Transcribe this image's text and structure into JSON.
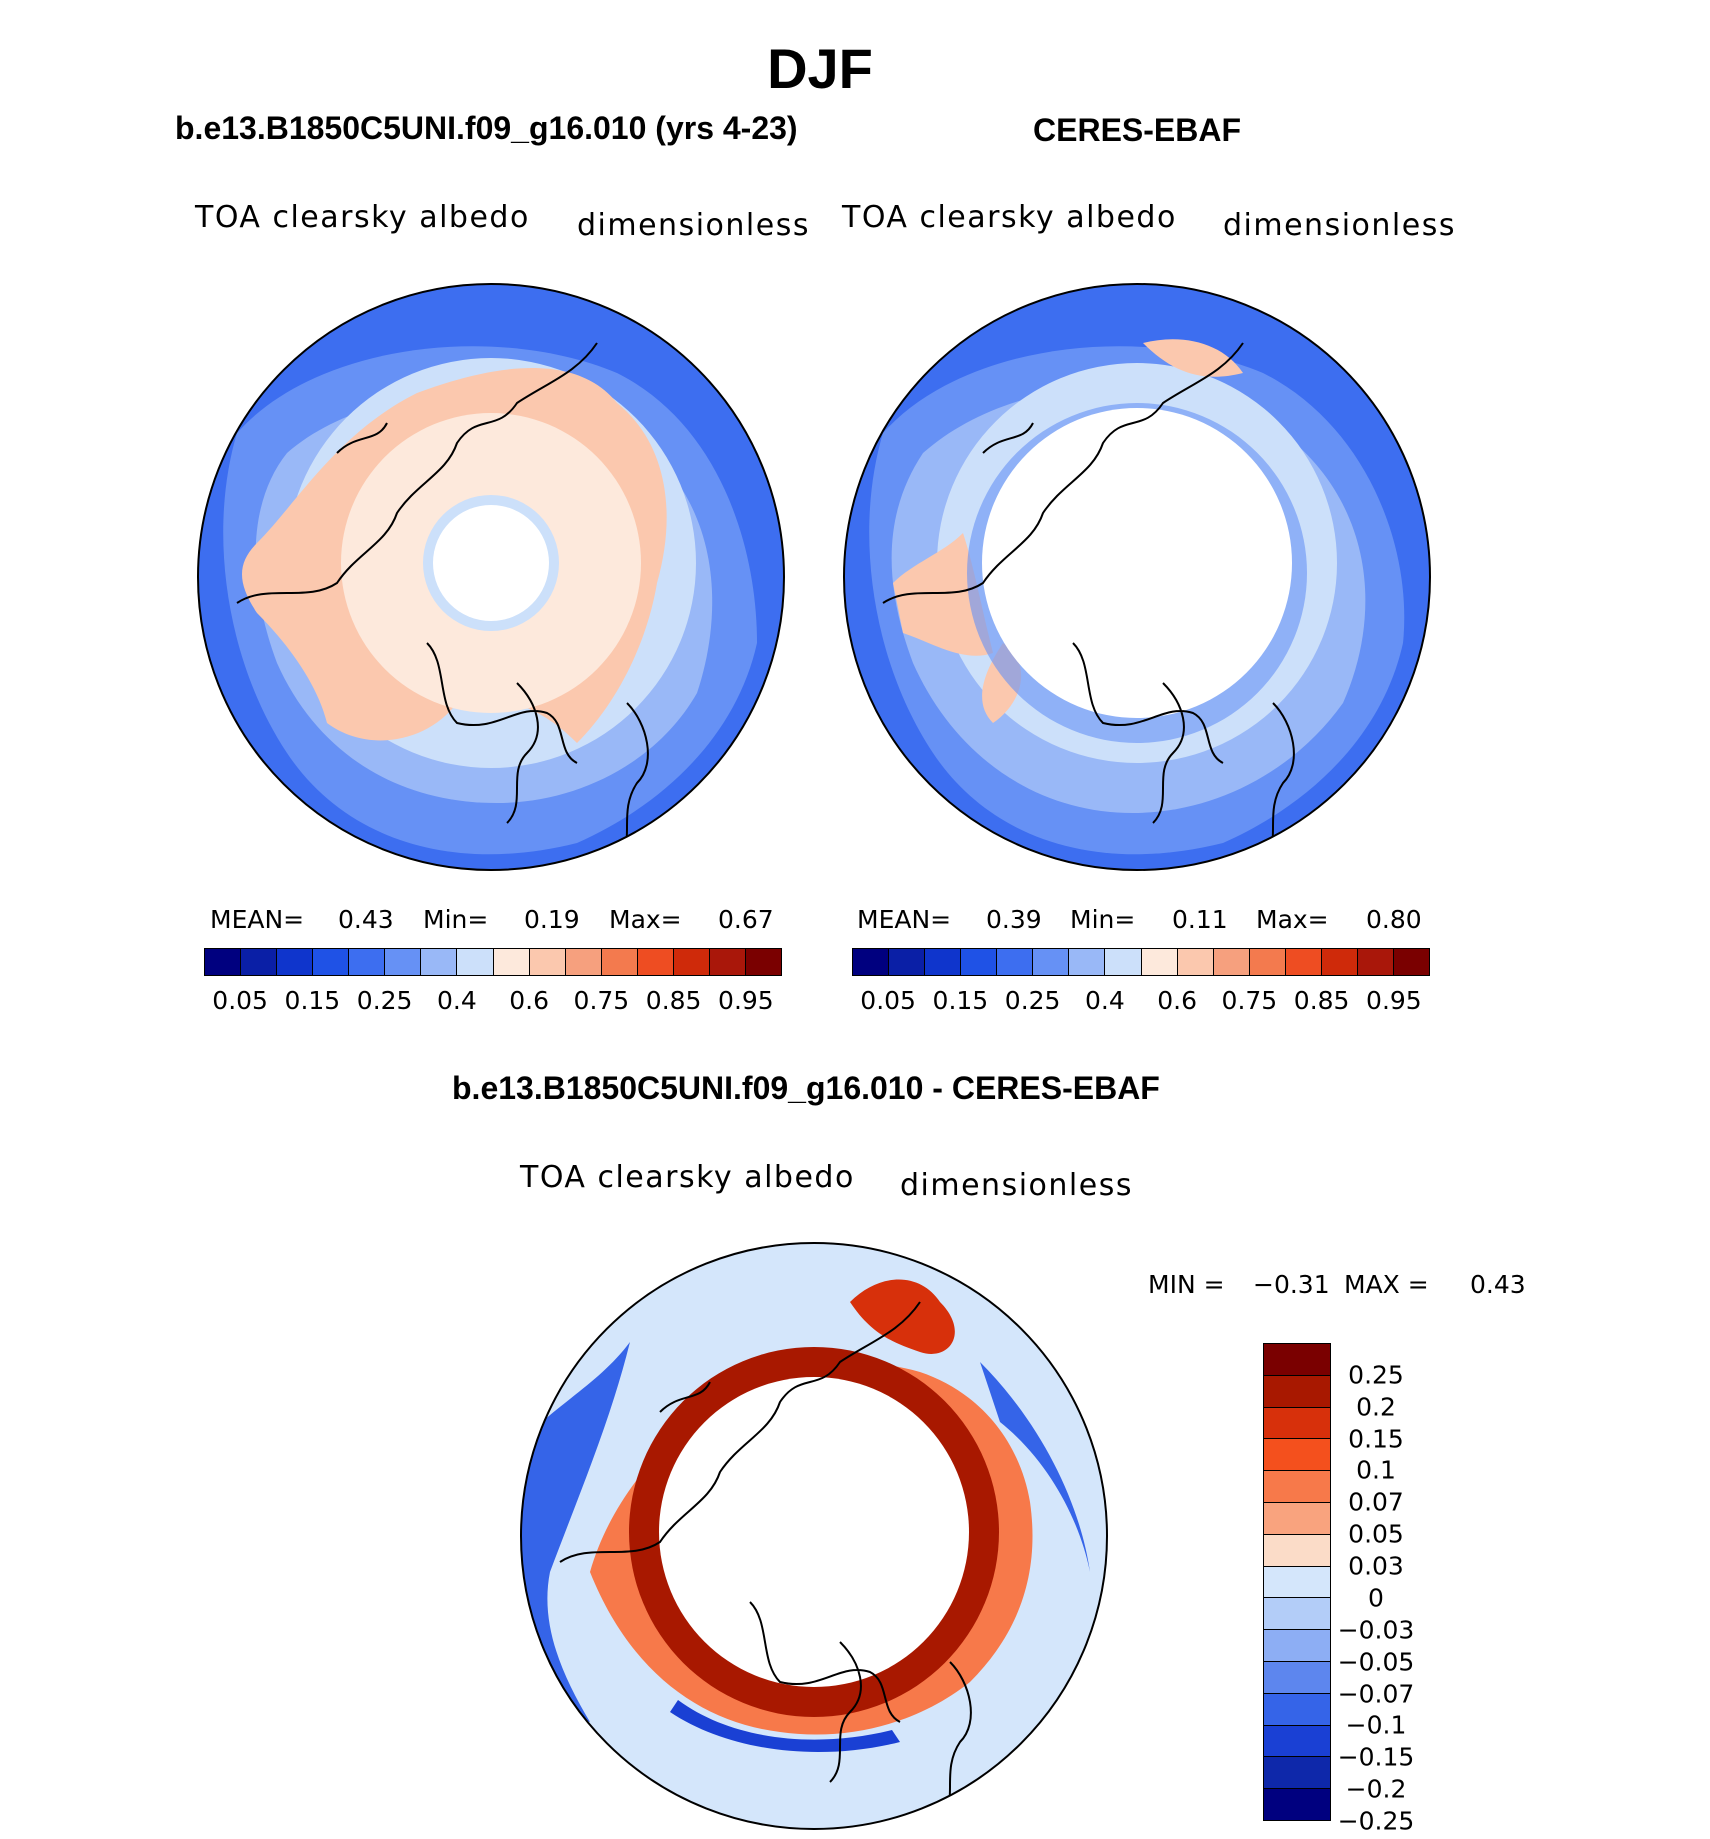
{
  "title": "DJF",
  "panels": [
    {
      "heading": "b.e13.B1850C5UNI.f09_g16.010 (yrs 4-23)",
      "left_label": "TOA clearsky albedo",
      "right_label": "dimensionless",
      "stats": {
        "mean_label": "MEAN=",
        "mean": "0.43",
        "min_label": "Min=",
        "min": "0.19",
        "max_label": "Max=",
        "max": "0.67"
      }
    },
    {
      "heading": "CERES-EBAF",
      "left_label": "TOA clearsky albedo",
      "right_label": "dimensionless",
      "stats": {
        "mean_label": "MEAN=",
        "mean": "0.39",
        "min_label": "Min=",
        "min": "0.11",
        "max_label": "Max=",
        "max": "0.80"
      }
    },
    {
      "heading": "b.e13.B1850C5UNI.f09_g16.010 - CERES-EBAF",
      "left_label": "TOA clearsky albedo",
      "right_label": "dimensionless",
      "stats": {
        "min_label": "MIN =",
        "min": "−0.31",
        "max_label": "MAX =",
        "max": "0.43"
      }
    }
  ],
  "albedo_colorbar": {
    "colors": [
      "#00007f",
      "#0a1fa6",
      "#0f35cc",
      "#1f52e6",
      "#3d6ef0",
      "#6691f5",
      "#99b8f7",
      "#cce0fa",
      "#fde9dc",
      "#fbc8ae",
      "#f6a07e",
      "#f37a4e",
      "#ee4d22",
      "#cf2a0a",
      "#a9170a",
      "#7a0000"
    ],
    "tick_labels": [
      "0.05",
      "0.15",
      "0.25",
      "0.4",
      "0.6",
      "0.75",
      "0.85",
      "0.95"
    ]
  },
  "diff_colorbar": {
    "colors": [
      "#7a0000",
      "#a81800",
      "#d7300b",
      "#f4501d",
      "#f7794a",
      "#f9a37e",
      "#fbdcc8",
      "#d4e6fb",
      "#b3cdf8",
      "#8daef4",
      "#5d86ee",
      "#3564e8",
      "#1a40d4",
      "#0e28aa",
      "#00007f"
    ],
    "tick_labels": [
      "0.25",
      "0.2",
      "0.15",
      "0.1",
      "0.07",
      "0.05",
      "0.03",
      "0",
      "−0.03",
      "−0.05",
      "−0.07",
      "−0.1",
      "−0.15",
      "−0.2",
      "−0.25"
    ]
  }
}
